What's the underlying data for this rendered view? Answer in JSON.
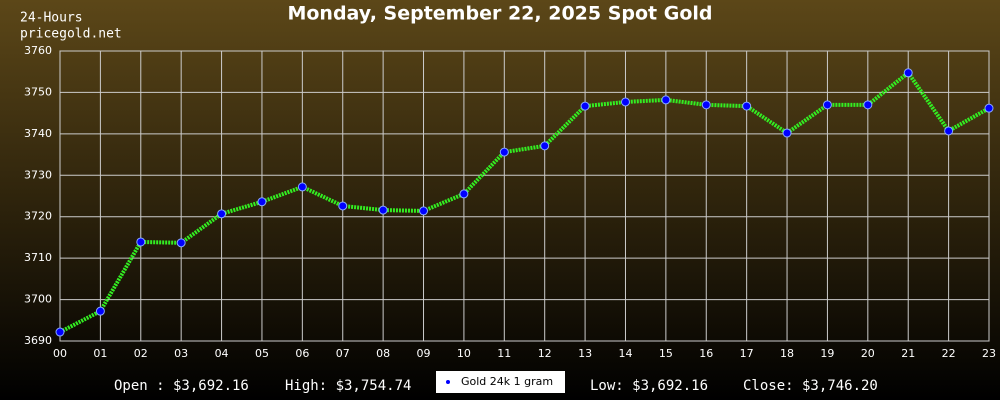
{
  "chart_data": {
    "type": "line",
    "title": "Monday, September 22, 2025 Spot Gold",
    "corner_texts": [
      "24-Hours",
      "pricegold.net"
    ],
    "categories": [
      "00",
      "01",
      "02",
      "03",
      "04",
      "05",
      "06",
      "07",
      "08",
      "09",
      "10",
      "11",
      "12",
      "13",
      "14",
      "15",
      "16",
      "17",
      "18",
      "19",
      "20",
      "21",
      "22",
      "23"
    ],
    "series": [
      {
        "name": "Gold 24k 1 gram",
        "color": "#33ee22",
        "marker_color": "#0000ff",
        "values": [
          3692.16,
          3697.2,
          3713.9,
          3713.7,
          3720.7,
          3723.6,
          3727.2,
          3722.6,
          3721.6,
          3721.4,
          3725.5,
          3735.6,
          3737.1,
          3746.7,
          3747.7,
          3748.2,
          3747.0,
          3746.7,
          3740.2,
          3747.0,
          3747.0,
          3754.74,
          3740.7,
          3746.2
        ]
      }
    ],
    "ylim": [
      3690,
      3760
    ],
    "yticks": [
      3690,
      3700,
      3710,
      3720,
      3730,
      3740,
      3750,
      3760
    ],
    "grid": true,
    "stats": [
      "Open : $3,692.16",
      "High: $3,754.74",
      "Low: $3,692.16",
      "Close: $3,746.20"
    ]
  }
}
